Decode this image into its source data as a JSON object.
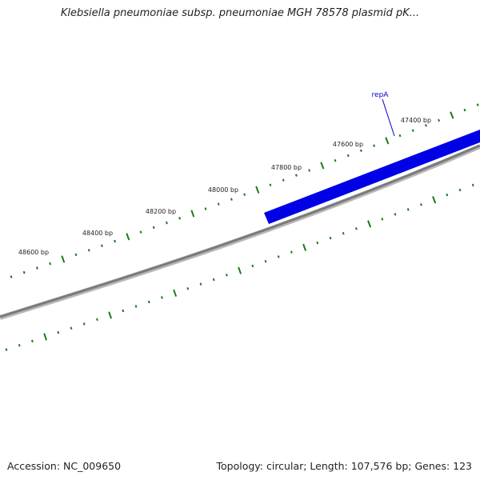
{
  "title": "Klebsiella pneumoniae subsp. pneumoniae MGH 78578 plasmid pK...",
  "footer": {
    "accession": "Accession: NC_009650",
    "summary": "Topology: circular; Length: 107,576 bp; Genes: 123"
  },
  "colors": {
    "backbone": "#808080",
    "ticks": "#1a7a1a",
    "gene": "#0000e6",
    "gene_label": "#0000cc"
  },
  "tick_labels": [
    "47400 bp",
    "47600 bp",
    "47800 bp",
    "48000 bp",
    "48200 bp",
    "48400 bp",
    "48600 bp"
  ],
  "genes": [
    {
      "name": "repA",
      "strand": "forward"
    }
  ]
}
